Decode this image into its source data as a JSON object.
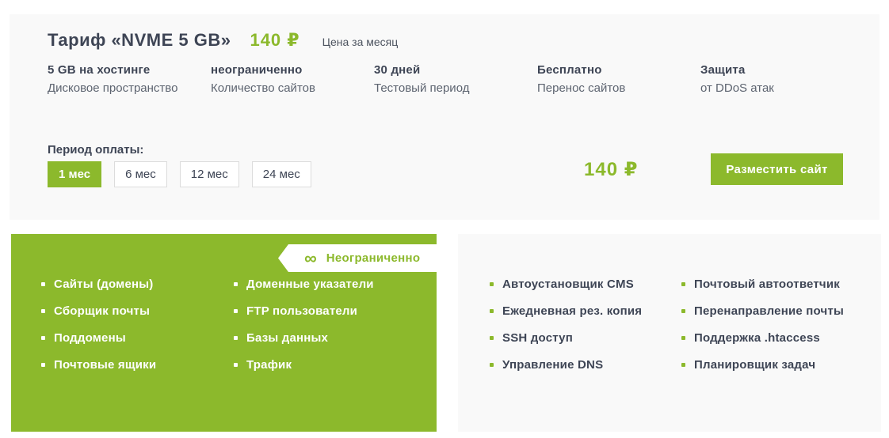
{
  "colors": {
    "accent_green": "#8cb92c",
    "dark_text": "#3e4555",
    "muted_text": "#5d6470",
    "card_bg": "#f9f9f9"
  },
  "tariff_card": {
    "title": "Тариф «NVME 5 GB»",
    "price": "140 ₽",
    "price_caption": "Цена за месяц",
    "features": [
      {
        "value": "5 GB на хостинге",
        "label": "Дисковое пространство"
      },
      {
        "value": "неограниченно",
        "label": "Количество сайтов"
      },
      {
        "value": "30 дней",
        "label": "Тестовый период"
      },
      {
        "value": "Бесплатно",
        "label": "Перенос сайтов"
      },
      {
        "value": "Защита",
        "label": "от DDoS атак"
      }
    ],
    "period": {
      "label": "Период оплаты:",
      "options": [
        {
          "label": "1 мес",
          "selected": true
        },
        {
          "label": "6 мес",
          "selected": false
        },
        {
          "label": "12 мес",
          "selected": false
        },
        {
          "label": "24 мес",
          "selected": false
        }
      ]
    },
    "total_price": "140 ₽",
    "cta_label": "Разместить сайт"
  },
  "unlimited_panel": {
    "badge": {
      "icon": "∞",
      "label": "Неограниченно"
    },
    "items": [
      "Сайты (домены)",
      "Сборщик почты",
      "Поддомены",
      "Почтовые ящики",
      "Доменные указатели",
      "FTP пользователи",
      "Базы данных",
      "Трафик"
    ]
  },
  "included_panel": {
    "items": [
      "Автоустановщик CMS",
      "Ежедневная рез. копия",
      "SSH доступ",
      "Управление DNS",
      "Почтовый автоответчик",
      "Перенаправление почты",
      "Поддержка .htaccess",
      "Планировщик задач"
    ]
  }
}
